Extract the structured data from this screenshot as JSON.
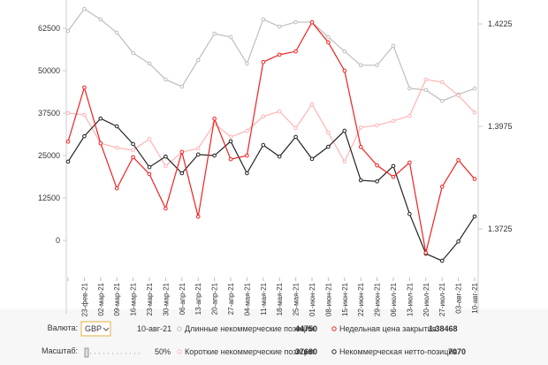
{
  "chart_data": {
    "type": "line",
    "categories": [
      null,
      "23-фев-21",
      "02-мар-21",
      "09-мар-21",
      "16-мар-21",
      "23-мар-21",
      "30-мар-21",
      "06-апр-21",
      "13-апр-21",
      "20-апр-21",
      "27-апр-21",
      "04-мая-21",
      "11-мая-21",
      "18-мая-21",
      "25-мая-21",
      "01-июн-21",
      "08-июн-21",
      "15-июн-21",
      "22-июн-21",
      "29-июн-21",
      "06-июл-21",
      "13-июл-21",
      "20-июл-21",
      "27-июл-21",
      "03-авг-21",
      "10-авг-21"
    ],
    "series": [
      {
        "name": "Длинные некоммерческие позиции",
        "color": "#bdbdbd",
        "values": [
          61700,
          68200,
          65100,
          61200,
          55200,
          52100,
          47400,
          45300,
          53100,
          60900,
          59900,
          52100,
          65100,
          63000,
          64300,
          64300,
          59900,
          55700,
          51600,
          51600,
          57300,
          44800,
          44300,
          41100,
          43000,
          44750
        ]
      },
      {
        "name": "Короткие некоммерческие позиции",
        "color": "#ffb3b3",
        "values": [
          37500,
          37000,
          28600,
          27300,
          26600,
          29900,
          21900,
          26000,
          27100,
          34400,
          30500,
          32300,
          36500,
          38000,
          33100,
          40100,
          31800,
          23200,
          33300,
          33900,
          35200,
          36700,
          47400,
          46600,
          42700,
          37680
        ]
      },
      {
        "name": "Некоммерческая нетто-позиция",
        "color": "#222222",
        "values": [
          23200,
          30700,
          35900,
          33600,
          28400,
          21600,
          24700,
          19800,
          25300,
          25000,
          29200,
          19800,
          28100,
          24700,
          30500,
          24000,
          27600,
          32300,
          17700,
          17400,
          21900,
          7800,
          -3900,
          -6000,
          -300,
          7070
        ]
      },
      {
        "name": "Недельная цена закрытия",
        "color": "#f02020",
        "axis": "y2",
        "values": [
          1.3938,
          1.407,
          1.3934,
          1.3824,
          1.39,
          1.3859,
          1.3775,
          1.3913,
          1.3755,
          1.3994,
          1.3895,
          1.3904,
          1.4132,
          1.415,
          1.4158,
          1.4229,
          1.418,
          1.4111,
          1.3925,
          1.388,
          1.3852,
          1.3887,
          1.3667,
          1.3828,
          1.3893,
          1.38468
        ]
      }
    ],
    "ylim": [
      -10400,
      70300
    ],
    "yticks": [
      0,
      12500,
      25000,
      37500,
      50000,
      62500
    ],
    "y2lim": [
      1.3611,
      1.4279
    ],
    "y2ticks": [
      1.3725,
      1.3975,
      1.4225
    ]
  },
  "ui": {
    "currency_label": "Валюта:",
    "currency": "GBP",
    "scale_label": "Масштаб:",
    "scale_value": "50%"
  }
}
